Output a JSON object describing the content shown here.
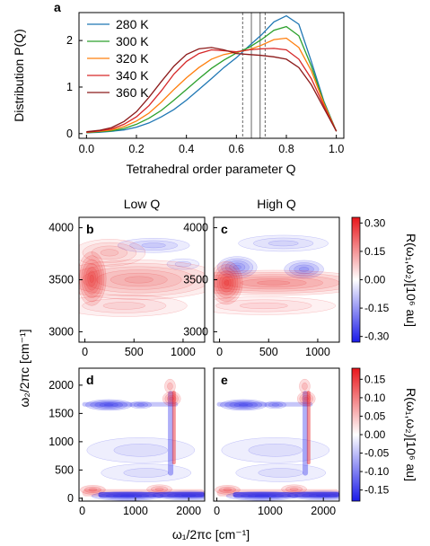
{
  "panels": {
    "a": "a",
    "b": "b",
    "c": "c",
    "d": "d",
    "e": "e"
  },
  "column_titles": {
    "low": "Low Q",
    "high": "High Q"
  },
  "chart_data": [
    {
      "id": "a",
      "type": "line",
      "xlabel": "Tetrahedral order parameter Q",
      "ylabel": "Distribution P(Q)",
      "xlim": [
        -0.03,
        1.03
      ],
      "ylim": [
        -0.1,
        2.6
      ],
      "xticks": [
        "0.0",
        "0.2",
        "0.4",
        "0.6",
        "0.8",
        "1.0"
      ],
      "xtick_values": [
        0,
        0.2,
        0.4,
        0.6,
        0.8,
        1.0
      ],
      "yticks": [
        "0",
        "1",
        "2"
      ],
      "ytick_values": [
        0,
        1,
        2
      ],
      "legend_position": "top-left",
      "vlines": [
        {
          "x": 0.625,
          "style": "dashed"
        },
        {
          "x": 0.66,
          "style": "solid"
        },
        {
          "x": 0.695,
          "style": "solid"
        },
        {
          "x": 0.715,
          "style": "dashed"
        }
      ],
      "x": [
        0.0,
        0.05,
        0.1,
        0.15,
        0.2,
        0.25,
        0.3,
        0.35,
        0.4,
        0.45,
        0.5,
        0.55,
        0.6,
        0.65,
        0.7,
        0.75,
        0.8,
        0.85,
        0.9,
        0.95,
        1.0
      ],
      "series": [
        {
          "name": "280 K",
          "color": "#1f77b4",
          "values": [
            0.02,
            0.03,
            0.05,
            0.08,
            0.14,
            0.23,
            0.36,
            0.52,
            0.72,
            0.95,
            1.18,
            1.42,
            1.63,
            1.88,
            2.12,
            2.4,
            2.53,
            2.35,
            1.55,
            0.7,
            0.05
          ]
        },
        {
          "name": "300 K",
          "color": "#2ca02c",
          "values": [
            0.02,
            0.04,
            0.06,
            0.11,
            0.2,
            0.33,
            0.5,
            0.72,
            0.95,
            1.18,
            1.4,
            1.58,
            1.73,
            1.85,
            2.02,
            2.22,
            2.3,
            2.1,
            1.45,
            0.68,
            0.05
          ]
        },
        {
          "name": "320 K",
          "color": "#ff7f0e",
          "values": [
            0.03,
            0.05,
            0.08,
            0.15,
            0.27,
            0.44,
            0.68,
            0.95,
            1.2,
            1.42,
            1.6,
            1.7,
            1.75,
            1.8,
            1.9,
            2.02,
            2.05,
            1.85,
            1.35,
            0.65,
            0.05
          ]
        },
        {
          "name": "340 K",
          "color": "#d62728",
          "values": [
            0.03,
            0.06,
            0.1,
            0.2,
            0.36,
            0.6,
            0.92,
            1.28,
            1.55,
            1.72,
            1.8,
            1.78,
            1.76,
            1.8,
            1.82,
            1.83,
            1.8,
            1.6,
            1.18,
            0.6,
            0.05
          ]
        },
        {
          "name": "360 K",
          "color": "#8c1a1a",
          "values": [
            0.04,
            0.07,
            0.13,
            0.26,
            0.47,
            0.78,
            1.12,
            1.45,
            1.7,
            1.82,
            1.85,
            1.8,
            1.72,
            1.7,
            1.68,
            1.65,
            1.6,
            1.42,
            1.05,
            0.55,
            0.05
          ]
        }
      ]
    },
    {
      "id": "b",
      "type": "heatmap",
      "title": "Low Q",
      "xlim": [
        -60,
        1220
      ],
      "ylim": [
        2900,
        4100
      ],
      "xticks": [
        "0",
        "500",
        "1000"
      ],
      "xtick_values": [
        0,
        500,
        1000
      ],
      "yticks": [
        "3000",
        "3500",
        "4000"
      ],
      "ytick_values": [
        3000,
        3500,
        4000
      ],
      "features": [
        {
          "x": 80,
          "y": 3510,
          "amplitude": 0.3
        },
        {
          "x": 350,
          "y": 3500,
          "amplitude": 0.15
        },
        {
          "x": 250,
          "y": 3750,
          "amplitude": 0.08
        },
        {
          "x": 750,
          "y": 3820,
          "amplitude": -0.05
        }
      ]
    },
    {
      "id": "c",
      "type": "heatmap",
      "title": "High Q",
      "xlim": [
        -60,
        1220
      ],
      "ylim": [
        2900,
        4100
      ],
      "xticks": [
        "0",
        "500",
        "1000"
      ],
      "xtick_values": [
        0,
        500,
        1000
      ],
      "yticks": [
        "3000",
        "3500",
        "4000"
      ],
      "ytick_values": [
        3000,
        3500,
        4000
      ],
      "features": [
        {
          "x": 80,
          "y": 3470,
          "amplitude": 0.3
        },
        {
          "x": 500,
          "y": 3450,
          "amplitude": 0.2
        },
        {
          "x": 200,
          "y": 3620,
          "amplitude": -0.12
        },
        {
          "x": 850,
          "y": 3600,
          "amplitude": -0.1
        }
      ]
    },
    {
      "id": "d",
      "type": "heatmap",
      "xlabel": "",
      "xlim": [
        -60,
        2300
      ],
      "ylim": [
        -50,
        2300
      ],
      "xticks": [
        "0",
        "1000",
        "2000"
      ],
      "xtick_values": [
        0,
        1000,
        2000
      ],
      "yticks": [
        "0",
        "500",
        "1000",
        "1500",
        "2000"
      ],
      "ytick_values": [
        0,
        500,
        1000,
        1500,
        2000
      ],
      "features": [
        {
          "x": 500,
          "y": 1650,
          "amplitude": -0.12
        },
        {
          "x": 1650,
          "y": 1000,
          "amplitude": 0.08
        },
        {
          "x": 800,
          "y": 80,
          "amplitude": -0.15
        },
        {
          "x": 150,
          "y": 150,
          "amplitude": 0.1
        }
      ]
    },
    {
      "id": "e",
      "type": "heatmap",
      "xlim": [
        -60,
        2300
      ],
      "ylim": [
        -50,
        2300
      ],
      "xticks": [
        "0",
        "1000",
        "2000"
      ],
      "xtick_values": [
        0,
        1000,
        2000
      ],
      "yticks": [],
      "ytick_values": [],
      "features": [
        {
          "x": 500,
          "y": 1650,
          "amplitude": -0.12
        },
        {
          "x": 1650,
          "y": 1000,
          "amplitude": 0.08
        },
        {
          "x": 800,
          "y": 80,
          "amplitude": -0.15
        },
        {
          "x": 150,
          "y": 150,
          "amplitude": 0.1
        }
      ]
    }
  ],
  "labels": {
    "ylabel_2d": "ω₂/2πc [cm⁻¹]",
    "xlabel_2d": "ω₁/2πc [cm⁻¹]",
    "colorbar_label": "R(ω₁,ω₂)[10⁶ au]"
  },
  "colorbar_top": {
    "ticks": [
      "0.30",
      "0.15",
      "0.00",
      "-0.15",
      "-0.30"
    ],
    "tick_values": [
      0.3,
      0.15,
      0.0,
      -0.15,
      -0.3
    ],
    "range": [
      -0.33,
      0.33
    ]
  },
  "colorbar_bottom": {
    "ticks": [
      "0.15",
      "0.10",
      "0.05",
      "0.00",
      "-0.05",
      "-0.10",
      "-0.15"
    ],
    "tick_values": [
      0.15,
      0.1,
      0.05,
      0.0,
      -0.05,
      -0.1,
      -0.15
    ],
    "range": [
      -0.18,
      0.18
    ]
  },
  "colors": {
    "positive": "#e8161b",
    "negative": "#1a1ae8",
    "neutral": "#ffffff"
  }
}
